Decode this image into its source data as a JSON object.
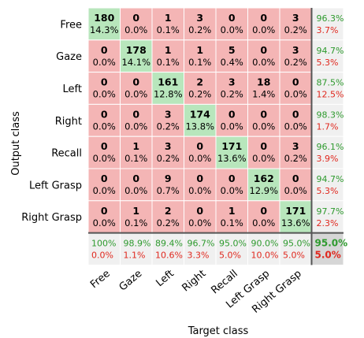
{
  "chart_data": {
    "type": "heatmap",
    "title": "",
    "xlabel": "Target class",
    "ylabel": "Output class",
    "classes": [
      "Free",
      "Gaze",
      "Left",
      "Right",
      "Recall",
      "Left Grasp",
      "Right Grasp"
    ],
    "matrix": [
      [
        180,
        0,
        1,
        3,
        0,
        0,
        3
      ],
      [
        0,
        178,
        1,
        1,
        5,
        0,
        3
      ],
      [
        0,
        0,
        161,
        2,
        3,
        18,
        0
      ],
      [
        0,
        0,
        3,
        174,
        0,
        0,
        0
      ],
      [
        0,
        1,
        3,
        0,
        171,
        0,
        3
      ],
      [
        0,
        0,
        9,
        0,
        0,
        162,
        0
      ],
      [
        0,
        1,
        2,
        0,
        1,
        0,
        171
      ]
    ],
    "matrix_percent": [
      [
        "14.3%",
        "0.0%",
        "0.1%",
        "0.2%",
        "0.0%",
        "0.0%",
        "0.2%"
      ],
      [
        "0.0%",
        "14.1%",
        "0.1%",
        "0.1%",
        "0.4%",
        "0.0%",
        "0.2%"
      ],
      [
        "0.0%",
        "0.0%",
        "12.8%",
        "0.2%",
        "0.2%",
        "1.4%",
        "0.0%"
      ],
      [
        "0.0%",
        "0.0%",
        "0.2%",
        "13.8%",
        "0.0%",
        "0.0%",
        "0.0%"
      ],
      [
        "0.0%",
        "0.1%",
        "0.2%",
        "0.0%",
        "13.6%",
        "0.0%",
        "0.2%"
      ],
      [
        "0.0%",
        "0.0%",
        "0.7%",
        "0.0%",
        "0.0%",
        "12.9%",
        "0.0%"
      ],
      [
        "0.0%",
        "0.1%",
        "0.2%",
        "0.0%",
        "0.1%",
        "0.0%",
        "13.6%"
      ]
    ],
    "row_summary": [
      [
        "96.3%",
        "3.7%"
      ],
      [
        "94.7%",
        "5.3%"
      ],
      [
        "87.5%",
        "12.5%"
      ],
      [
        "98.3%",
        "1.7%"
      ],
      [
        "96.1%",
        "3.9%"
      ],
      [
        "94.7%",
        "5.3%"
      ],
      [
        "97.7%",
        "2.3%"
      ]
    ],
    "col_summary": [
      [
        "100%",
        "0.0%"
      ],
      [
        "98.9%",
        "1.1%"
      ],
      [
        "89.4%",
        "10.6%"
      ],
      [
        "96.7%",
        "3.3%"
      ],
      [
        "95.0%",
        "5.0%"
      ],
      [
        "90.0%",
        "10.0%"
      ],
      [
        "95.0%",
        "5.0%"
      ]
    ],
    "overall": [
      "95.0%",
      "5.0%"
    ],
    "colors": {
      "correct": "#b8e6bc",
      "incorrect": "#f4b5b5",
      "summary": "#f0f0f0",
      "corner": "#d6d6d6",
      "good_text": "#2e9a2e",
      "bad_text": "#e0281e"
    }
  }
}
